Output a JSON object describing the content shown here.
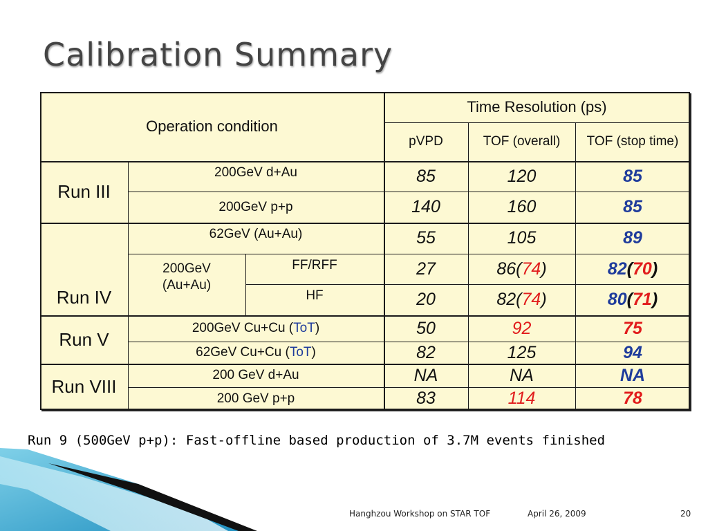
{
  "slide": {
    "title": "Calibration Summary",
    "footnote": "Run 9 (500GeV p+p): Fast-offline based production of 3.7M events finished",
    "footer": {
      "workshop": "Hanghzou Workshop on STAR TOF",
      "date": "April 26, 2009",
      "page": "20"
    }
  },
  "table": {
    "header": {
      "operation_condition": "Operation condition",
      "time_resolution": "Time Resolution (ps)",
      "col_pvpd": "pVPD",
      "col_tof_overall": "TOF (overall)",
      "col_tof_stop": "TOF (stop time)"
    },
    "runs": {
      "run3": "Run III",
      "run4": "Run IV",
      "run5": "Run V",
      "run8": "Run VIII"
    },
    "rows": [
      {
        "condition": "200GeV d+Au",
        "pvpd": "85",
        "tof": "120",
        "tof_stop": "85"
      },
      {
        "condition": "200GeV p+p",
        "pvpd": "140",
        "tof": "160",
        "tof_stop": "85"
      },
      {
        "condition": "62GeV (Au+Au)",
        "pvpd": "55",
        "tof": "105",
        "tof_stop": "89"
      },
      {
        "condition_group": "200GeV (Au+Au)",
        "condition": "FF/RFF",
        "pvpd": "27",
        "tof": "86",
        "tof_paren": "74",
        "tof_stop": "82",
        "tof_stop_paren": "70"
      },
      {
        "condition": "HF",
        "pvpd": "20",
        "tof": "82",
        "tof_paren": "74",
        "tof_stop": "80",
        "tof_stop_paren": "71"
      },
      {
        "condition": "200GeV Cu+Cu (",
        "condition_tag": "ToT",
        "condition_end": ")",
        "pvpd": "50",
        "tof": "92",
        "tof_stop": "75"
      },
      {
        "condition": "62GeV Cu+Cu (",
        "condition_tag": "ToT",
        "condition_end": ")",
        "pvpd": "82",
        "tof": "125",
        "tof_stop": "94"
      },
      {
        "condition": "200 GeV d+Au",
        "pvpd": "NA",
        "tof": "NA",
        "tof_stop": "NA"
      },
      {
        "condition": "200 GeV p+p",
        "pvpd": "83",
        "tof": "114",
        "tof_stop": "78"
      }
    ]
  },
  "colors": {
    "table_bg": "#fdf9d3",
    "blue": "#1f3c9c",
    "red": "#e11c1c",
    "title": "#444444"
  }
}
